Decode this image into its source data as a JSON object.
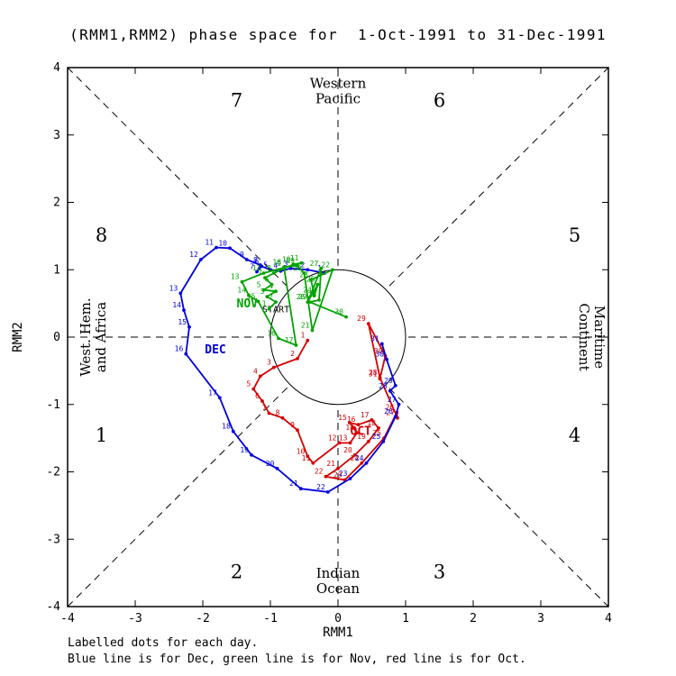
{
  "caption": {
    "line1": "Labelled dots for each day.",
    "line2": "Blue line is for Dec, green line is for Nov, red line is for Oct."
  },
  "chart_data": {
    "type": "line",
    "title": "(RMM1,RMM2) phase space for  1-Oct-1991 to 31-Dec-1991",
    "xlabel": "RMM1",
    "ylabel": "RMM2",
    "xlim": [
      -4,
      4
    ],
    "ylim": [
      -4,
      4
    ],
    "ticks": [
      -4,
      -3,
      -2,
      -1,
      0,
      1,
      2,
      3,
      4
    ],
    "grid": false,
    "unit_circle_radius": 1,
    "phase_labels": [
      {
        "text": "1",
        "x": -3.5,
        "y": -1.55
      },
      {
        "text": "2",
        "x": -1.5,
        "y": -3.58
      },
      {
        "text": "3",
        "x": 1.5,
        "y": -3.58
      },
      {
        "text": "4",
        "x": 3.5,
        "y": -1.55
      },
      {
        "text": "5",
        "x": 3.5,
        "y": 1.42
      },
      {
        "text": "6",
        "x": 1.5,
        "y": 3.42
      },
      {
        "text": "7",
        "x": -1.5,
        "y": 3.42
      },
      {
        "text": "8",
        "x": -3.5,
        "y": 1.42
      }
    ],
    "region_labels": [
      {
        "lines": [
          "Western",
          "Pacific"
        ],
        "x": 0,
        "y": 3.7,
        "rotate": 0
      },
      {
        "lines": [
          "Indian",
          "Ocean"
        ],
        "x": 0,
        "y": -3.57,
        "rotate": 0
      },
      {
        "lines": [
          "West. Hem.",
          "and Africa"
        ],
        "x": -3.67,
        "y": 0,
        "rotate": -90
      },
      {
        "lines": [
          "Maritime",
          "Continent"
        ],
        "x": 3.8,
        "y": 0,
        "rotate": 90
      }
    ],
    "annotations": [
      {
        "text": "START",
        "x": -1.12,
        "y": 0.37,
        "color": "#000000"
      }
    ],
    "series": [
      {
        "name": "Oct",
        "label": "OCT",
        "color": "#d40000",
        "label_pos": [
          0.18,
          -1.45
        ],
        "points": [
          [
            -0.45,
            -0.05
          ],
          [
            -0.6,
            -0.32
          ],
          [
            -0.95,
            -0.45
          ],
          [
            -1.15,
            -0.58
          ],
          [
            -1.25,
            -0.77
          ],
          [
            -1.12,
            -0.95
          ],
          [
            -1.02,
            -1.13
          ],
          [
            -0.82,
            -1.2
          ],
          [
            -0.6,
            -1.38
          ],
          [
            -0.45,
            -1.77
          ],
          [
            -0.37,
            -1.87
          ],
          [
            0.02,
            -1.57
          ],
          [
            0.18,
            -1.57
          ],
          [
            0.28,
            -1.42
          ],
          [
            0.17,
            -1.27
          ],
          [
            0.3,
            -1.3
          ],
          [
            0.5,
            -1.23
          ],
          [
            0.6,
            -1.35
          ],
          [
            0.45,
            -1.55
          ],
          [
            0.25,
            -1.75
          ],
          [
            0.0,
            -1.95
          ],
          [
            -0.18,
            -2.07
          ],
          [
            0.1,
            -2.12
          ],
          [
            0.35,
            -1.87
          ],
          [
            0.68,
            -1.5
          ],
          [
            0.87,
            -1.12
          ],
          [
            0.88,
            -1.2
          ],
          [
            0.62,
            -0.6
          ],
          [
            0.45,
            0.2
          ],
          [
            0.7,
            -0.28
          ],
          [
            0.62,
            -0.62
          ]
        ]
      },
      {
        "name": "Dec",
        "label": "DEC",
        "color": "#0000dd",
        "label_pos": [
          -1.97,
          -0.24
        ],
        "points": [
          [
            -0.2,
            0.95
          ],
          [
            -0.45,
            1.0
          ],
          [
            -0.7,
            1.02
          ],
          [
            -0.85,
            0.98
          ],
          [
            -1.0,
            1.0
          ],
          [
            -1.13,
            1.05
          ],
          [
            -1.2,
            0.97
          ],
          [
            -1.15,
            1.07
          ],
          [
            -1.35,
            1.15
          ],
          [
            -1.6,
            1.32
          ],
          [
            -1.8,
            1.33
          ],
          [
            -2.03,
            1.15
          ],
          [
            -2.33,
            0.65
          ],
          [
            -2.28,
            0.4
          ],
          [
            -2.2,
            0.15
          ],
          [
            -2.25,
            -0.25
          ],
          [
            -1.75,
            -0.9
          ],
          [
            -1.55,
            -1.4
          ],
          [
            -1.28,
            -1.75
          ],
          [
            -0.9,
            -1.95
          ],
          [
            -0.55,
            -2.25
          ],
          [
            -0.15,
            -2.3
          ],
          [
            0.18,
            -2.1
          ],
          [
            0.42,
            -1.87
          ],
          [
            0.67,
            -1.55
          ],
          [
            0.85,
            -1.18
          ],
          [
            0.9,
            -1.0
          ],
          [
            0.77,
            -0.8
          ],
          [
            0.85,
            -0.72
          ],
          [
            0.72,
            -0.33
          ],
          [
            0.65,
            -0.1
          ]
        ]
      },
      {
        "name": "Nov",
        "label": "NOV",
        "color": "#00a300",
        "label_pos": [
          -1.5,
          0.44
        ],
        "points": [
          [
            -1.02,
            0.42
          ],
          [
            -0.92,
            0.52
          ],
          [
            -1.05,
            0.6
          ],
          [
            -0.92,
            0.68
          ],
          [
            -1.1,
            0.7
          ],
          [
            -0.98,
            0.78
          ],
          [
            -1.08,
            0.88
          ],
          [
            -0.95,
            0.95
          ],
          [
            -0.8,
            1.02
          ],
          [
            -0.66,
            1.08
          ],
          [
            -0.54,
            1.1
          ],
          [
            -1.1,
            0.95
          ],
          [
            -1.42,
            0.82
          ],
          [
            -1.32,
            0.62
          ],
          [
            -1.18,
            0.53
          ],
          [
            -0.88,
            -0.02
          ],
          [
            -0.62,
            -0.12
          ],
          [
            -0.8,
            1.04
          ],
          [
            -0.6,
            1.06
          ],
          [
            -0.5,
            0.95
          ],
          [
            -0.38,
            0.1
          ],
          [
            -0.08,
            1.0
          ],
          [
            -0.4,
            0.85
          ],
          [
            -0.35,
            0.62
          ],
          [
            -0.3,
            0.78
          ],
          [
            -0.45,
            0.52
          ],
          [
            -0.25,
            1.02
          ],
          [
            -0.28,
            0.55
          ],
          [
            -0.42,
            0.52
          ],
          [
            0.12,
            0.3
          ]
        ]
      }
    ]
  }
}
